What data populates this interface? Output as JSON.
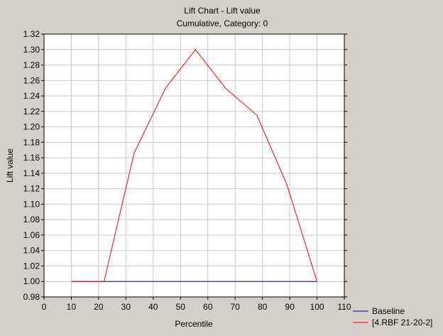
{
  "chart_data": {
    "type": "line",
    "title": "Lift Chart - Lift value",
    "subtitle": "Cumulative, Category: 0",
    "xlabel": "Percentile",
    "ylabel": "Lift value",
    "xlim": [
      0,
      110
    ],
    "ylim": [
      0.98,
      1.32
    ],
    "x_ticks": [
      "0",
      "10",
      "20",
      "30",
      "40",
      "50",
      "60",
      "70",
      "80",
      "90",
      "100",
      "110"
    ],
    "y_ticks": [
      "0.98",
      "1.00",
      "1.02",
      "1.04",
      "1.06",
      "1.08",
      "1.10",
      "1.12",
      "1.14",
      "1.16",
      "1.18",
      "1.20",
      "1.22",
      "1.24",
      "1.26",
      "1.28",
      "1.30",
      "1.32"
    ],
    "grid": true,
    "legend_position": "bottom-right",
    "series": [
      {
        "name": "Baseline",
        "color": "#0000a0",
        "x": [
          10,
          100
        ],
        "y": [
          1.0,
          1.0
        ]
      },
      {
        "name": "[4.RBF 21-20-2]",
        "color": "#ff0000",
        "x": [
          10,
          22,
          33,
          44.5,
          55.5,
          66.5,
          78,
          89,
          100
        ],
        "y": [
          1.0,
          1.0,
          1.166,
          1.25,
          1.3,
          1.25,
          1.215,
          1.125,
          1.0
        ]
      }
    ]
  },
  "colors": {
    "background": "#d4d0c8",
    "plot_area": "#ffffff",
    "grid": "#c8c8c8"
  }
}
